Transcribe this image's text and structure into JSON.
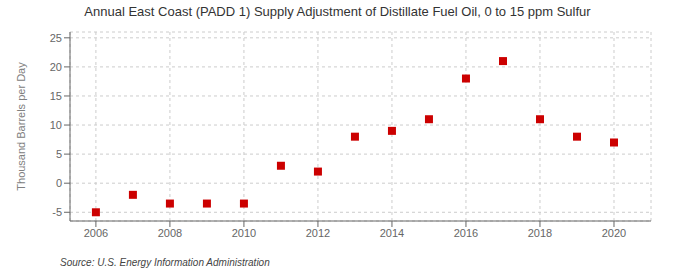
{
  "chart_data": {
    "type": "scatter",
    "title": "Annual East Coast (PADD 1) Supply Adjustment of Distillate Fuel Oil, 0 to 15 ppm Sulfur",
    "y_label": "Thousand Barrels per Day",
    "annotations": [
      "Source: U.S. Energy Information Administration"
    ],
    "x": [
      2006,
      2007,
      2008,
      2009,
      2010,
      2011,
      2012,
      2013,
      2014,
      2015,
      2016,
      2017,
      2018,
      2019,
      2020
    ],
    "values": [
      -5.0,
      -2.0,
      -3.5,
      -3.5,
      -3.5,
      3.0,
      2.0,
      8.0,
      9.0,
      11.0,
      18.0,
      21.0,
      11.0,
      8.0,
      7.0
    ],
    "color": "#cc0000",
    "marker": "square",
    "grid": true,
    "xlim": [
      2005.3,
      2021.0
    ],
    "xticks": [
      2006,
      2008,
      2010,
      2012,
      2014,
      2016,
      2018,
      2020
    ],
    "ylim": [
      -6.5,
      26
    ],
    "yticks": [
      -5,
      0,
      5,
      10,
      15,
      20,
      25
    ]
  }
}
